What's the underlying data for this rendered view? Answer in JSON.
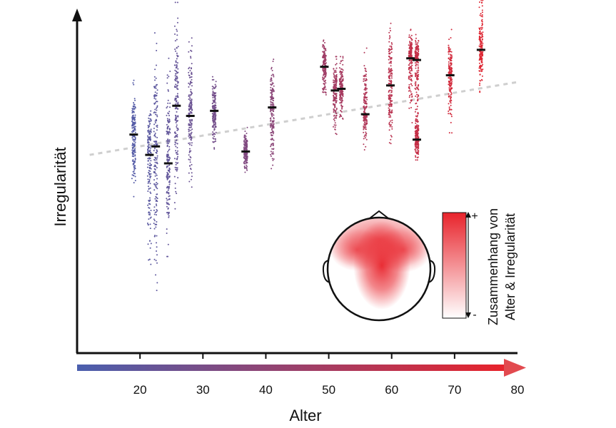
{
  "chart_data": {
    "type": "scatter",
    "xlabel": "Alter",
    "ylabel": "Irregularität",
    "xlim": [
      10,
      80
    ],
    "ylim": [
      0,
      10
    ],
    "x_ticks": [
      20,
      30,
      40,
      50,
      60,
      70,
      80
    ],
    "colorbar_x": {
      "from_color": "#4a5fae",
      "to_color": "#e8232b"
    },
    "trend_line": {
      "x": [
        12,
        80
      ],
      "y": [
        5.85,
        8.0
      ],
      "style": "dashed",
      "color": "#cfcfcf"
    },
    "groups": [
      {
        "x": 19,
        "mean": 6.45,
        "min": 4.6,
        "max": 8.05
      },
      {
        "x": 21.5,
        "mean": 5.85,
        "min": 2.6,
        "max": 7.7
      },
      {
        "x": 22.5,
        "mean": 6.1,
        "min": 1.85,
        "max": 9.45
      },
      {
        "x": 24.5,
        "mean": 5.6,
        "min": 2.85,
        "max": 8.7
      },
      {
        "x": 25.8,
        "mean": 7.3,
        "min": 3.7,
        "max": 10.35
      },
      {
        "x": 28,
        "mean": 7.0,
        "min": 4.9,
        "max": 9.3
      },
      {
        "x": 31.8,
        "mean": 7.15,
        "min": 6.0,
        "max": 8.3
      },
      {
        "x": 36.8,
        "mean": 5.95,
        "min": 5.3,
        "max": 6.7
      },
      {
        "x": 41,
        "mean": 7.25,
        "min": 5.05,
        "max": 9.1
      },
      {
        "x": 49.3,
        "mean": 8.45,
        "min": 7.5,
        "max": 9.3
      },
      {
        "x": 51,
        "mean": 7.75,
        "min": 6.4,
        "max": 8.75
      },
      {
        "x": 52,
        "mean": 7.8,
        "min": 6.8,
        "max": 8.75
      },
      {
        "x": 55.8,
        "mean": 7.05,
        "min": 6.0,
        "max": 9.0
      },
      {
        "x": 59.8,
        "mean": 7.9,
        "min": 5.95,
        "max": 9.8
      },
      {
        "x": 63,
        "mean": 8.7,
        "min": 6.8,
        "max": 9.6
      },
      {
        "x": 64,
        "mean": 8.65,
        "min": 5.9,
        "max": 9.4
      },
      {
        "x": 64,
        "mean": 6.3,
        "min": 5.7,
        "max": 7.2
      },
      {
        "x": 69.3,
        "mean": 8.2,
        "min": 6.5,
        "max": 9.55
      },
      {
        "x": 74.2,
        "mean": 8.95,
        "min": 7.7,
        "max": 10.7
      }
    ]
  },
  "inset": {
    "legend_title_line1": "Zusammenhang von",
    "legend_title_line2": "Alter & Irregularität",
    "scale_plus": "+",
    "scale_minus": "-",
    "high_color": "#e8232b",
    "low_color": "#ffffff"
  }
}
